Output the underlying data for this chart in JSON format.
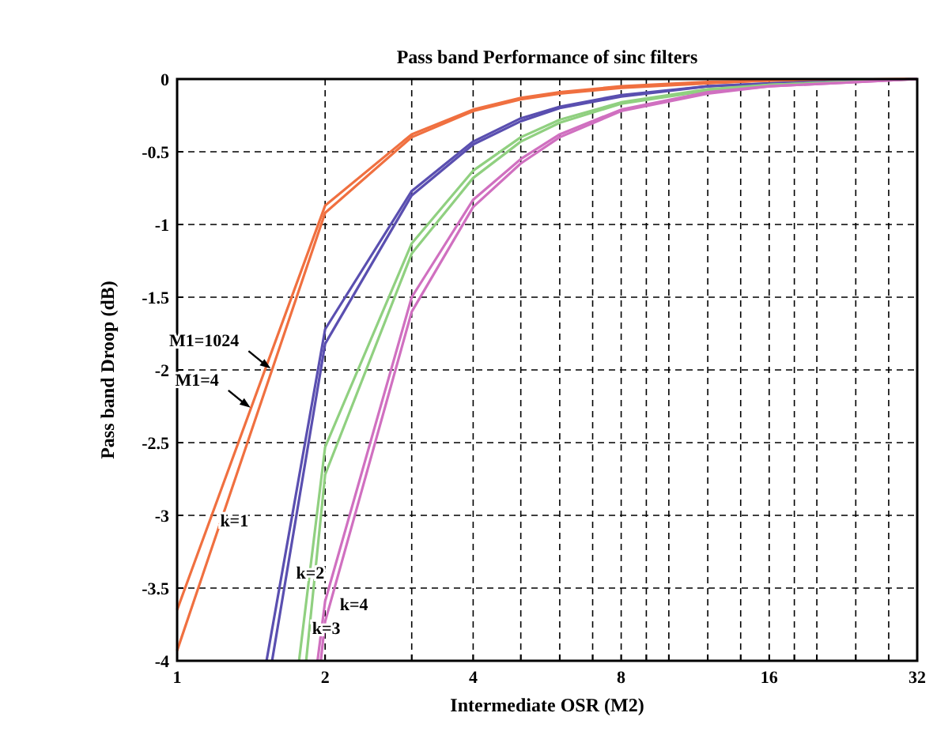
{
  "chart_data": {
    "type": "line",
    "title": "Pass band Performance of sinc filters",
    "xlabel": "Intermediate OSR (M2)",
    "ylabel": "Pass band Droop (dB)",
    "log": "x",
    "grid": true,
    "marker": "none",
    "line_style": "solid",
    "xlim": [
      1,
      32
    ],
    "ylim": [
      -4,
      0
    ],
    "xticks": [
      1,
      2,
      {
        "value": 3,
        "label": null
      },
      4,
      {
        "value": 5,
        "label": null
      },
      {
        "value": 6,
        "label": null
      },
      {
        "value": 7,
        "label": null
      },
      8,
      {
        "value": 9,
        "label": null
      },
      {
        "value": 10,
        "label": null
      },
      {
        "value": 12,
        "label": null
      },
      {
        "value": 14,
        "label": null
      },
      16,
      {
        "value": 18,
        "label": null
      },
      {
        "value": 20,
        "label": null
      },
      {
        "value": 24,
        "label": null
      },
      {
        "value": 28,
        "label": null
      },
      32
    ],
    "yticks": [
      -4,
      -3.5,
      -3,
      -2.5,
      -2,
      -1.5,
      -1,
      -0.5,
      0
    ],
    "series": [
      {
        "color": "#f07040",
        "x": [
          1,
          2,
          3,
          4,
          5,
          6,
          8,
          12,
          16,
          32
        ],
        "values": [
          -3.65,
          -0.87,
          -0.38,
          -0.21,
          -0.13,
          -0.09,
          -0.05,
          -0.02,
          -0.01,
          0
        ]
      },
      {
        "color": "#f07040",
        "x": [
          1,
          2,
          3,
          4,
          5,
          6,
          8,
          12,
          16,
          32
        ],
        "values": [
          -3.93,
          -0.92,
          -0.4,
          -0.22,
          -0.14,
          -0.1,
          -0.06,
          -0.03,
          -0.01,
          0
        ]
      },
      {
        "color": "#5a4fb0",
        "x": [
          1.52,
          2,
          3,
          4,
          5,
          6,
          8,
          12,
          16,
          32
        ],
        "values": [
          -4,
          -1.72,
          -0.77,
          -0.43,
          -0.27,
          -0.19,
          -0.11,
          -0.05,
          -0.03,
          0
        ]
      },
      {
        "color": "#5a4fb0",
        "x": [
          1.56,
          2,
          3,
          4,
          5,
          6,
          8,
          12,
          16,
          32
        ],
        "values": [
          -4,
          -1.82,
          -0.8,
          -0.45,
          -0.29,
          -0.2,
          -0.12,
          -0.05,
          -0.03,
          0
        ]
      },
      {
        "color": "#90d080",
        "x": [
          1.77,
          2,
          3,
          4,
          5,
          6,
          8,
          12,
          16,
          32
        ],
        "values": [
          -4,
          -2.53,
          -1.13,
          -0.63,
          -0.4,
          -0.28,
          -0.16,
          -0.07,
          -0.04,
          0
        ]
      },
      {
        "color": "#90d080",
        "x": [
          1.83,
          2,
          3,
          4,
          5,
          6,
          8,
          12,
          16,
          32
        ],
        "values": [
          -4,
          -2.72,
          -1.2,
          -0.68,
          -0.43,
          -0.3,
          -0.17,
          -0.08,
          -0.04,
          0
        ]
      },
      {
        "color": "#d070c0",
        "x": [
          1.93,
          2,
          3,
          4,
          5,
          6,
          8,
          12,
          16,
          32
        ],
        "values": [
          -4,
          -3.59,
          -1.5,
          -0.83,
          -0.55,
          -0.38,
          -0.21,
          -0.09,
          -0.05,
          0
        ]
      },
      {
        "color": "#d070c0",
        "x": [
          1.96,
          2,
          3,
          4,
          5,
          6,
          8,
          12,
          16,
          32
        ],
        "values": [
          -4,
          -3.73,
          -1.6,
          -0.88,
          -0.58,
          -0.4,
          -0.22,
          -0.1,
          -0.05,
          0
        ]
      }
    ],
    "annotations": [
      {
        "text": "M1=1024",
        "x": 1.55,
        "y": -1.99
      },
      {
        "text": "M1=4",
        "x": 1.41,
        "y": -2.26
      },
      {
        "text": "k=1",
        "x": 1.17,
        "y": -3.03
      },
      {
        "text": "k=2",
        "x": 1.67,
        "y": -3.39
      },
      {
        "text": "k=3",
        "x": 1.8,
        "y": -3.77
      },
      {
        "text": "k=4",
        "x": 2.05,
        "y": -3.61
      }
    ]
  }
}
